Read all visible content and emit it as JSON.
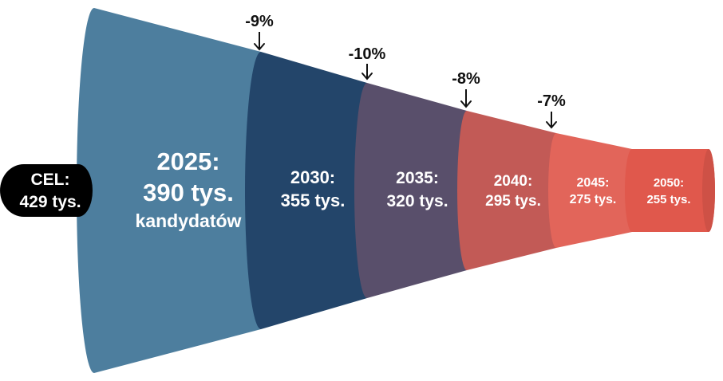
{
  "goal": {
    "line1": "CEL:",
    "line2": "429 tys."
  },
  "stages": [
    {
      "year_label": "2025:",
      "value_label": "390 tys.",
      "unit_label": "kandydatów",
      "color": "#4d7e9e"
    },
    {
      "year_label": "2030:",
      "value_label": "355 tys.",
      "color": "#23456a"
    },
    {
      "year_label": "2035:",
      "value_label": "320 tys.",
      "color": "#594f6b"
    },
    {
      "year_label": "2040:",
      "value_label": "295 tys.",
      "color": "#c25a56"
    },
    {
      "year_label": "2045:",
      "value_label": "275 tys.",
      "color": "#e2655a"
    },
    {
      "year_label": "2050:",
      "value_label": "255 tys.",
      "color": "#e0584c"
    }
  ],
  "changes": [
    {
      "label": "-9%"
    },
    {
      "label": "-10%"
    },
    {
      "label": "-8%"
    },
    {
      "label": "-7%"
    }
  ],
  "colors": {
    "goal_badge": "#000000",
    "arrow": "#111111",
    "text_on_segments": "#ffffff"
  }
}
